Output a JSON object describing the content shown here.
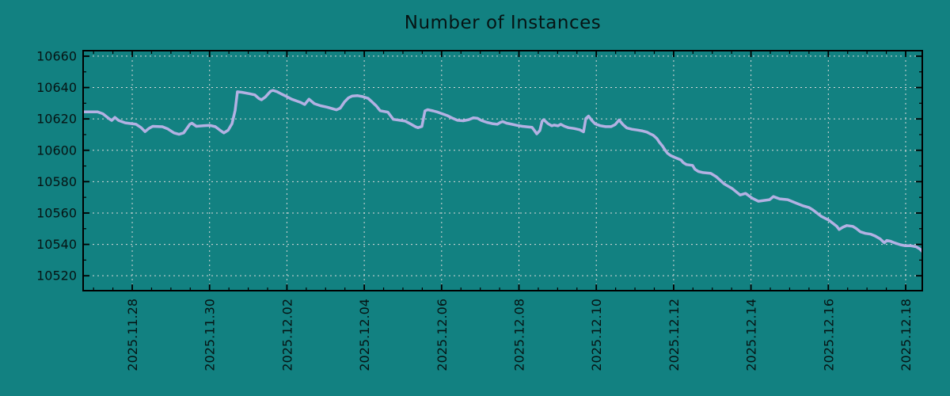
{
  "chart_data": {
    "type": "line",
    "title": "Number of Instances",
    "xlabel": "",
    "ylabel": "",
    "legend": "none",
    "grid": {
      "show": true,
      "color": "#d9d9d9",
      "style": "dotted"
    },
    "colors": {
      "background": "#128181",
      "axis": "#000000",
      "text": "#061414",
      "line": "#b3b1e3"
    },
    "x_axis": {
      "unit": "date",
      "range_days_from_first_tick": [
        -1.27,
        20.43
      ],
      "major_tick_step_days": 2,
      "minor_tick_step_days": 0.5,
      "ticks": [
        {
          "day": 0,
          "label": "2025.11.28"
        },
        {
          "day": 2,
          "label": "2025.11.30"
        },
        {
          "day": 4,
          "label": "2025.12.02"
        },
        {
          "day": 6,
          "label": "2025.12.04"
        },
        {
          "day": 8,
          "label": "2025.12.06"
        },
        {
          "day": 10,
          "label": "2025.12.08"
        },
        {
          "day": 12,
          "label": "2025.12.10"
        },
        {
          "day": 14,
          "label": "2025.12.12"
        },
        {
          "day": 16,
          "label": "2025.12.14"
        },
        {
          "day": 18,
          "label": "2025.12.16"
        },
        {
          "day": 20,
          "label": "2025.12.18"
        }
      ]
    },
    "y_axis": {
      "range": [
        10510.5,
        10663.5
      ],
      "minor_tick_step": 10,
      "ticks": [
        {
          "value": 10520,
          "label": "10520"
        },
        {
          "value": 10540,
          "label": "10540"
        },
        {
          "value": 10560,
          "label": "10560"
        },
        {
          "value": 10580,
          "label": "10580"
        },
        {
          "value": 10600,
          "label": "10600"
        },
        {
          "value": 10620,
          "label": "10620"
        },
        {
          "value": 10640,
          "label": "10640"
        },
        {
          "value": 10660,
          "label": "10660"
        }
      ]
    },
    "series": [
      {
        "name": "instances",
        "color": "#b3b1e3",
        "points": [
          [
            -1.27,
            10624.5
          ],
          [
            -0.9,
            10624.5
          ],
          [
            -0.76,
            10623.3
          ],
          [
            -0.61,
            10620.4
          ],
          [
            -0.53,
            10619.0
          ],
          [
            -0.45,
            10621.0
          ],
          [
            -0.35,
            10619.0
          ],
          [
            -0.18,
            10617.5
          ],
          [
            0.1,
            10616.6
          ],
          [
            0.23,
            10614.4
          ],
          [
            0.33,
            10611.9
          ],
          [
            0.43,
            10613.9
          ],
          [
            0.53,
            10615.3
          ],
          [
            0.78,
            10615.0
          ],
          [
            0.92,
            10613.6
          ],
          [
            1.08,
            10611.1
          ],
          [
            1.21,
            10610.2
          ],
          [
            1.33,
            10611.1
          ],
          [
            1.49,
            10616.6
          ],
          [
            1.54,
            10617.3
          ],
          [
            1.66,
            10615.3
          ],
          [
            1.84,
            10615.7
          ],
          [
            2.01,
            10615.9
          ],
          [
            2.15,
            10615.0
          ],
          [
            2.27,
            10612.8
          ],
          [
            2.37,
            10611.1
          ],
          [
            2.48,
            10612.8
          ],
          [
            2.58,
            10617.0
          ],
          [
            2.66,
            10625.4
          ],
          [
            2.72,
            10637.3
          ],
          [
            2.83,
            10637.0
          ],
          [
            3.03,
            10636.1
          ],
          [
            3.17,
            10635.3
          ],
          [
            3.27,
            10633.1
          ],
          [
            3.34,
            10632.2
          ],
          [
            3.44,
            10633.9
          ],
          [
            3.58,
            10637.7
          ],
          [
            3.64,
            10638.2
          ],
          [
            3.75,
            10637.3
          ],
          [
            3.85,
            10636.0
          ],
          [
            3.99,
            10634.3
          ],
          [
            4.12,
            10632.6
          ],
          [
            4.26,
            10631.4
          ],
          [
            4.36,
            10630.5
          ],
          [
            4.46,
            10629.2
          ],
          [
            4.57,
            10632.6
          ],
          [
            4.71,
            10629.7
          ],
          [
            4.87,
            10628.4
          ],
          [
            5.04,
            10627.5
          ],
          [
            5.28,
            10625.8
          ],
          [
            5.38,
            10626.9
          ],
          [
            5.49,
            10630.9
          ],
          [
            5.59,
            10633.4
          ],
          [
            5.69,
            10634.6
          ],
          [
            5.83,
            10634.8
          ],
          [
            5.96,
            10634.2
          ],
          [
            6.1,
            10633.1
          ],
          [
            6.2,
            10630.9
          ],
          [
            6.31,
            10628.3
          ],
          [
            6.41,
            10625.2
          ],
          [
            6.61,
            10624.3
          ],
          [
            6.75,
            10619.7
          ],
          [
            6.92,
            10619.1
          ],
          [
            7.06,
            10618.6
          ],
          [
            7.19,
            10616.9
          ],
          [
            7.33,
            10614.9
          ],
          [
            7.39,
            10614.4
          ],
          [
            7.49,
            10615.2
          ],
          [
            7.57,
            10625.1
          ],
          [
            7.64,
            10625.9
          ],
          [
            7.78,
            10625.1
          ],
          [
            7.9,
            10624.3
          ],
          [
            8.0,
            10623.4
          ],
          [
            8.15,
            10622.1
          ],
          [
            8.29,
            10620.4
          ],
          [
            8.41,
            10619.1
          ],
          [
            8.56,
            10618.8
          ],
          [
            8.7,
            10619.5
          ],
          [
            8.82,
            10620.7
          ],
          [
            8.93,
            10620.4
          ],
          [
            9.03,
            10619.0
          ],
          [
            9.17,
            10617.8
          ],
          [
            9.31,
            10617.0
          ],
          [
            9.44,
            10616.6
          ],
          [
            9.52,
            10617.8
          ],
          [
            9.58,
            10618.3
          ],
          [
            9.68,
            10617.3
          ],
          [
            9.82,
            10616.6
          ],
          [
            9.95,
            10615.9
          ],
          [
            10.09,
            10615.3
          ],
          [
            10.23,
            10614.9
          ],
          [
            10.34,
            10614.6
          ],
          [
            10.4,
            10612.6
          ],
          [
            10.46,
            10610.5
          ],
          [
            10.54,
            10612.6
          ],
          [
            10.6,
            10618.6
          ],
          [
            10.64,
            10619.5
          ],
          [
            10.75,
            10617.0
          ],
          [
            10.85,
            10615.6
          ],
          [
            10.91,
            10616.1
          ],
          [
            11.01,
            10615.6
          ],
          [
            11.08,
            10616.6
          ],
          [
            11.18,
            10615.3
          ],
          [
            11.28,
            10614.4
          ],
          [
            11.42,
            10613.9
          ],
          [
            11.57,
            10613.1
          ],
          [
            11.67,
            10611.8
          ],
          [
            11.73,
            10620.3
          ],
          [
            11.8,
            10621.8
          ],
          [
            11.9,
            10618.6
          ],
          [
            11.97,
            10616.9
          ],
          [
            12.1,
            10615.7
          ],
          [
            12.24,
            10615.1
          ],
          [
            12.38,
            10615.1
          ],
          [
            12.49,
            10616.4
          ],
          [
            12.59,
            10619.3
          ],
          [
            12.69,
            10616.4
          ],
          [
            12.79,
            10614.2
          ],
          [
            12.92,
            10613.4
          ],
          [
            13.06,
            10612.9
          ],
          [
            13.2,
            10612.3
          ],
          [
            13.31,
            10611.6
          ],
          [
            13.37,
            10610.8
          ],
          [
            13.47,
            10609.6
          ],
          [
            13.57,
            10607.4
          ],
          [
            13.63,
            10605.2
          ],
          [
            13.71,
            10602.8
          ],
          [
            13.78,
            10600.1
          ],
          [
            13.84,
            10598.1
          ],
          [
            13.92,
            10596.7
          ],
          [
            13.98,
            10596.0
          ],
          [
            14.08,
            10595.0
          ],
          [
            14.19,
            10593.8
          ],
          [
            14.25,
            10592.1
          ],
          [
            14.33,
            10590.9
          ],
          [
            14.49,
            10590.4
          ],
          [
            14.55,
            10587.9
          ],
          [
            14.64,
            10586.5
          ],
          [
            14.76,
            10585.8
          ],
          [
            14.96,
            10585.3
          ],
          [
            15.11,
            10583.0
          ],
          [
            15.31,
            10578.5
          ],
          [
            15.52,
            10575.5
          ],
          [
            15.72,
            10571.5
          ],
          [
            15.86,
            10572.5
          ],
          [
            16.03,
            10569.5
          ],
          [
            16.19,
            10567.5
          ],
          [
            16.48,
            10568.5
          ],
          [
            16.58,
            10570.5
          ],
          [
            16.74,
            10569.0
          ],
          [
            16.95,
            10568.5
          ],
          [
            17.15,
            10566.5
          ],
          [
            17.36,
            10564.5
          ],
          [
            17.5,
            10563.5
          ],
          [
            17.6,
            10562.0
          ],
          [
            17.81,
            10558.0
          ],
          [
            18.01,
            10555.5
          ],
          [
            18.22,
            10551.5
          ],
          [
            18.28,
            10549.5
          ],
          [
            18.38,
            10551.0
          ],
          [
            18.48,
            10552.0
          ],
          [
            18.63,
            10551.5
          ],
          [
            18.73,
            10550.0
          ],
          [
            18.83,
            10548.0
          ],
          [
            18.96,
            10547.0
          ],
          [
            19.1,
            10546.5
          ],
          [
            19.2,
            10545.5
          ],
          [
            19.34,
            10543.5
          ],
          [
            19.45,
            10541.0
          ],
          [
            19.51,
            10542.5
          ],
          [
            19.61,
            10542.0
          ],
          [
            19.71,
            10541.0
          ],
          [
            19.86,
            10539.8
          ],
          [
            19.98,
            10539.2
          ],
          [
            20.12,
            10539.2
          ],
          [
            20.27,
            10538.5
          ],
          [
            20.37,
            10537.0
          ],
          [
            20.43,
            10535.5
          ]
        ]
      }
    ]
  }
}
